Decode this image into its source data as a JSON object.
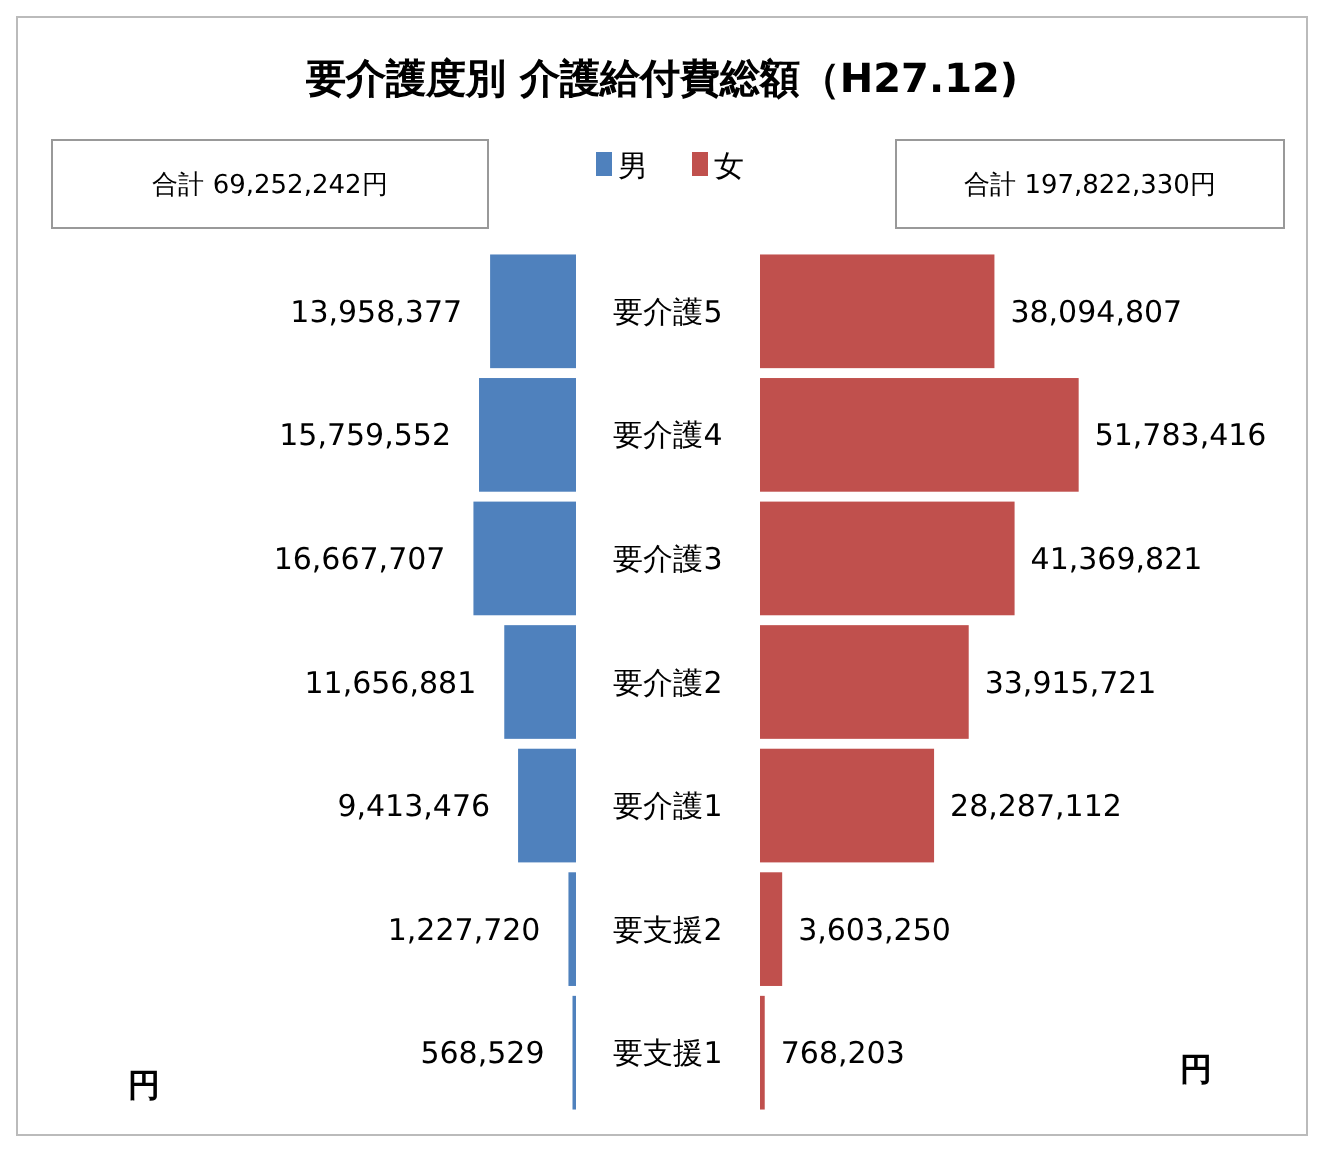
{
  "chart_data": [
    {
      "type": "bar",
      "orientation": "horizontal",
      "title": "要介護度別  介護給付費総額（H27.12)",
      "categories": [
        "要介護5",
        "要介護4",
        "要介護3",
        "要介護2",
        "要介護1",
        "要支援2",
        "要支援1"
      ],
      "series": [
        {
          "name": "男",
          "color": "#4f81bd",
          "values": [
            13958377,
            15759552,
            16667707,
            11656881,
            9413476,
            1227720,
            568529
          ],
          "value_labels": [
            "13,958,377",
            "15,759,552",
            "16,667,707",
            "11,656,881",
            "9,413,476",
            "1,227,720",
            "568,529"
          ]
        }
      ],
      "legend": "top",
      "annotations": [
        "合計 69,252,242円",
        "円"
      ]
    },
    {
      "type": "bar",
      "orientation": "horizontal",
      "categories": [
        null,
        null,
        null,
        null,
        null,
        null,
        null
      ],
      "series": [
        {
          "name": "女",
          "color": "#c0504d",
          "values": [
            38094807,
            51783416,
            41369821,
            33915721,
            28287112,
            3603250,
            768203
          ],
          "value_labels": [
            "38,094,807",
            "51,783,416",
            "41,369,821",
            "33,915,721",
            "28,287,112",
            "3,603,250",
            "768,203"
          ]
        }
      ],
      "legend": "top",
      "annotations": [
        "合計 197,822,330円",
        "円"
      ]
    }
  ]
}
